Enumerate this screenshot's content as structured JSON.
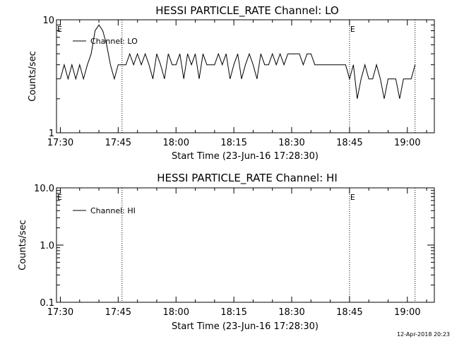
{
  "footer": {
    "timestamp": "12-Apr-2018 20:23"
  },
  "chart_data": [
    {
      "type": "line",
      "title": "HESSI PARTICLE_RATE Channel: LO",
      "xlabel": "Start Time (23-Jun-16 17:28:30)",
      "ylabel": "Counts/sec",
      "y_scale": "log",
      "ylim": [
        1,
        10
      ],
      "xlim": [
        "17:29",
        "19:07"
      ],
      "x_ticks": [
        "17:30",
        "17:45",
        "18:00",
        "18:15",
        "18:30",
        "18:45",
        "19:00"
      ],
      "y_ticks": [
        "1",
        "10"
      ],
      "legend": {
        "position": "top-left",
        "entries": [
          "Channel: LO"
        ]
      },
      "markers": [
        {
          "label": "E",
          "time": "17:29"
        },
        {
          "label": "E",
          "time": "18:45"
        }
      ],
      "vlines": [
        "17:46",
        "18:45",
        "19:02"
      ],
      "series": [
        {
          "name": "Channel: LO",
          "x": [
            "17:30",
            "17:31",
            "17:32",
            "17:33",
            "17:34",
            "17:35",
            "17:36",
            "17:37",
            "17:38",
            "17:39",
            "17:40",
            "17:41",
            "17:42",
            "17:43",
            "17:44",
            "17:45",
            "17:46",
            "17:47",
            "17:48",
            "17:49",
            "17:50",
            "17:51",
            "17:52",
            "17:53",
            "17:54",
            "17:55",
            "17:56",
            "17:57",
            "17:58",
            "17:59",
            "18:00",
            "18:01",
            "18:02",
            "18:03",
            "18:04",
            "18:05",
            "18:06",
            "18:07",
            "18:08",
            "18:09",
            "18:10",
            "18:11",
            "18:12",
            "18:13",
            "18:14",
            "18:15",
            "18:16",
            "18:17",
            "18:18",
            "18:19",
            "18:20",
            "18:21",
            "18:22",
            "18:23",
            "18:24",
            "18:25",
            "18:26",
            "18:27",
            "18:28",
            "18:29",
            "18:30",
            "18:31",
            "18:32",
            "18:33",
            "18:34",
            "18:35",
            "18:36",
            "18:37",
            "18:38",
            "18:39",
            "18:40",
            "18:41",
            "18:42",
            "18:43",
            "18:44",
            "18:45",
            "18:46",
            "18:47",
            "18:48",
            "18:49",
            "18:50",
            "18:51",
            "18:52",
            "18:53",
            "18:54",
            "18:55",
            "18:56",
            "18:57",
            "18:58",
            "18:59",
            "19:00",
            "19:01",
            "19:02"
          ],
          "y": [
            3,
            4,
            3,
            4,
            3,
            4,
            3,
            4,
            5,
            8,
            9,
            8,
            6,
            4,
            3,
            4,
            4,
            4,
            5,
            4,
            5,
            4,
            5,
            4,
            3,
            5,
            4,
            3,
            5,
            4,
            4,
            5,
            3,
            5,
            4,
            5,
            3,
            5,
            4,
            4,
            4,
            5,
            4,
            5,
            3,
            4,
            5,
            3,
            4,
            5,
            4,
            3,
            5,
            4,
            4,
            5,
            4,
            5,
            4,
            5,
            5,
            5,
            5,
            4,
            5,
            5,
            4,
            4,
            4,
            4,
            4,
            4,
            4,
            4,
            4,
            3,
            4,
            2,
            3,
            4,
            3,
            3,
            4,
            3,
            2,
            3,
            3,
            3,
            2,
            3,
            3,
            3,
            4
          ]
        }
      ]
    },
    {
      "type": "line",
      "title": "HESSI PARTICLE_RATE Channel: HI",
      "xlabel": "Start Time (23-Jun-16 17:28:30)",
      "ylabel": "Counts/sec",
      "y_scale": "log",
      "ylim": [
        0.1,
        10
      ],
      "xlim": [
        "17:29",
        "19:07"
      ],
      "x_ticks": [
        "17:30",
        "17:45",
        "18:00",
        "18:15",
        "18:30",
        "18:45",
        "19:00"
      ],
      "y_ticks": [
        "0.1",
        "1.0",
        "10.0"
      ],
      "legend": {
        "position": "top-left",
        "entries": [
          "Channel: HI"
        ]
      },
      "markers": [
        {
          "label": "E",
          "time": "17:29"
        },
        {
          "label": "E",
          "time": "18:45"
        }
      ],
      "vlines": [
        "17:46",
        "18:45",
        "19:02"
      ],
      "series": [
        {
          "name": "Channel: HI",
          "x": [],
          "y": []
        }
      ]
    }
  ]
}
